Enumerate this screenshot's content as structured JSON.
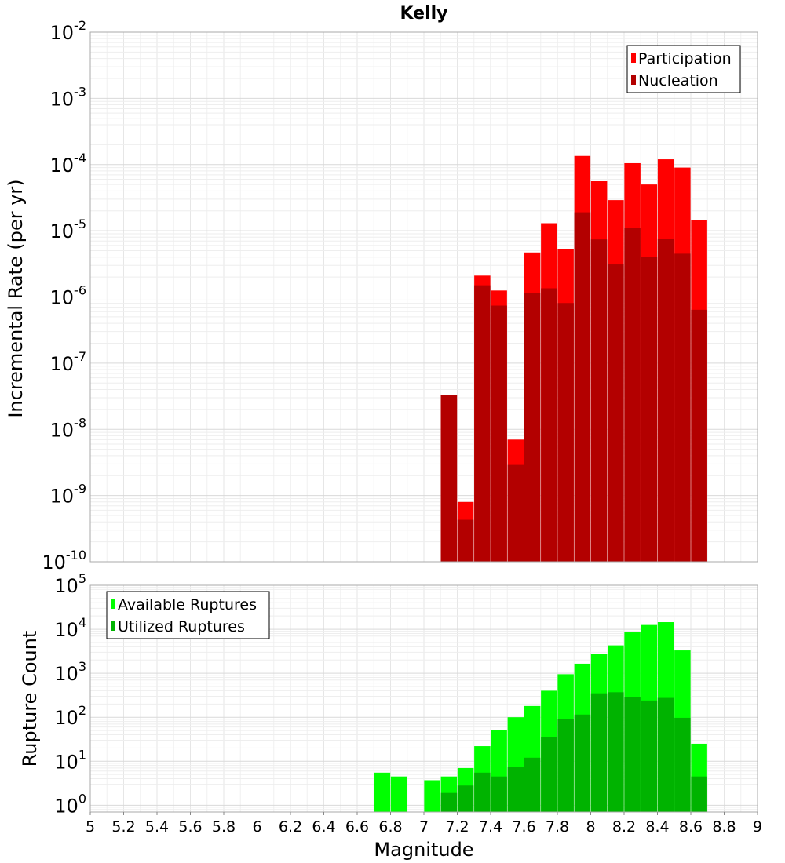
{
  "chart_data": [
    {
      "type": "bar",
      "title": "Kelly",
      "xlabel": "",
      "ylabel": "Incremental Rate (per yr)",
      "yscale": "log",
      "xlim": [
        5,
        9
      ],
      "ylim": [
        1e-10,
        0.01
      ],
      "grid": true,
      "legend_position": "top-right",
      "series": [
        {
          "name": "Participation",
          "color": "#ff0000",
          "x": [
            7.15,
            7.25,
            7.35,
            7.45,
            7.55,
            7.65,
            7.75,
            7.85,
            7.95,
            8.05,
            8.15,
            8.25,
            8.35,
            8.45,
            8.55,
            8.65
          ],
          "values": [
            3.3e-08,
            8e-10,
            2.1e-06,
            1.25e-06,
            7e-09,
            4.7e-06,
            1.3e-05,
            5.3e-06,
            0.000135,
            5.6e-05,
            2.9e-05,
            0.000105,
            5e-05,
            0.00012,
            9e-05,
            1.45e-05
          ]
        },
        {
          "name": "Nucleation",
          "color": "#b30000",
          "x": [
            7.15,
            7.25,
            7.35,
            7.45,
            7.55,
            7.65,
            7.75,
            7.85,
            7.95,
            8.05,
            8.15,
            8.25,
            8.35,
            8.45,
            8.55,
            8.65
          ],
          "values": [
            3.3e-08,
            4.3e-10,
            1.5e-06,
            7.4e-07,
            2.9e-09,
            1.15e-06,
            1.35e-06,
            8.1e-07,
            1.9e-05,
            7.4e-06,
            3.1e-06,
            1.1e-05,
            4e-06,
            7.5e-06,
            4.5e-06,
            6.4e-07
          ]
        }
      ]
    },
    {
      "type": "bar",
      "title": "",
      "xlabel": "Magnitude",
      "ylabel": "Rupture Count",
      "yscale": "log",
      "xlim": [
        5,
        9
      ],
      "ylim": [
        0.7,
        100000
      ],
      "grid": true,
      "legend_position": "top-left",
      "x_ticks": [
        "5",
        "5.2",
        "5.4",
        "5.6",
        "5.8",
        "6",
        "6.2",
        "6.4",
        "6.6",
        "6.8",
        "7",
        "7.2",
        "7.4",
        "7.6",
        "7.8",
        "8",
        "8.2",
        "8.4",
        "8.6",
        "8.8",
        "9"
      ],
      "series": [
        {
          "name": "Available Ruptures",
          "color": "#00ff00",
          "x": [
            6.75,
            6.85,
            7.05,
            7.15,
            7.25,
            7.35,
            7.45,
            7.55,
            7.65,
            7.75,
            7.85,
            7.95,
            8.05,
            8.15,
            8.25,
            8.35,
            8.45,
            8.55,
            8.65
          ],
          "values": [
            5.5,
            4.5,
            3.7,
            4.5,
            7,
            22,
            52,
            100,
            180,
            400,
            950,
            1650,
            2700,
            4300,
            8500,
            12500,
            14500,
            3300,
            25
          ]
        },
        {
          "name": "Utilized Ruptures",
          "color": "#00b300",
          "x": [
            7.15,
            7.25,
            7.35,
            7.45,
            7.55,
            7.65,
            7.75,
            7.85,
            7.95,
            8.05,
            8.15,
            8.25,
            8.35,
            8.45,
            8.55,
            8.65
          ],
          "values": [
            1.9,
            2.8,
            5.5,
            4.5,
            7.5,
            12,
            36,
            90,
            115,
            350,
            370,
            290,
            240,
            275,
            97,
            4.5
          ]
        }
      ]
    }
  ]
}
